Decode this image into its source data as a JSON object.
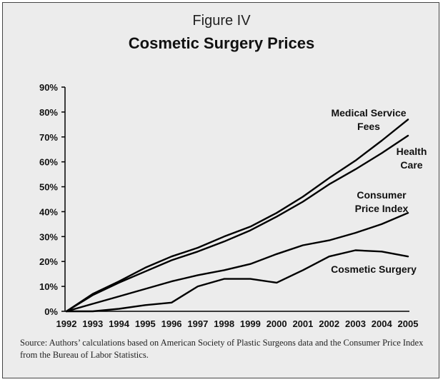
{
  "figure_label": "Figure IV",
  "source_note": "Source: Authors’ calculations based on American Society of Plastic Surgeons data and the Consumer Price Index from the Bureau of Labor Statistics.",
  "colors": {
    "line": "#000000",
    "background": "#ececec",
    "axis": "#000000"
  },
  "chart_data": {
    "type": "line",
    "title": "Cosmetic Surgery Prices",
    "xlabel": "",
    "ylabel": "",
    "x": [
      "1992",
      "1993",
      "1994",
      "1995",
      "1996",
      "1997",
      "1998",
      "1999",
      "2000",
      "2001",
      "2002",
      "2003",
      "2004",
      "2005"
    ],
    "ylim": [
      0,
      90
    ],
    "y_ticks": [
      "0%",
      "10%",
      "20%",
      "30%",
      "40%",
      "50%",
      "60%",
      "70%",
      "80%",
      "90%"
    ],
    "grid": false,
    "series": [
      {
        "name": "Medical Service Fees",
        "label_lines": [
          "Medical Service",
          "Fees"
        ],
        "values": [
          0,
          7,
          12,
          17.5,
          22,
          25.5,
          30,
          34,
          39.5,
          46,
          53.5,
          60.5,
          68.5,
          77
        ]
      },
      {
        "name": "Health Care",
        "label_lines": [
          "Health",
          "Care"
        ],
        "values": [
          0,
          6.5,
          11.5,
          16,
          20.5,
          24,
          28,
          32.5,
          38,
          44,
          51,
          57,
          63.5,
          70.5
        ]
      },
      {
        "name": "Consumer Price Index",
        "label_lines": [
          "Consumer",
          "Price Index"
        ],
        "values": [
          0,
          3,
          6,
          9,
          12,
          14.5,
          16.5,
          19,
          23,
          26.5,
          28.5,
          31.5,
          35,
          39.5
        ]
      },
      {
        "name": "Cosmetic Surgery",
        "label_lines": [
          "Cosmetic Surgery"
        ],
        "values": [
          0,
          0,
          1,
          2.5,
          3.5,
          10,
          13,
          13,
          11.5,
          16.5,
          22,
          24.5,
          24,
          22
        ]
      }
    ]
  }
}
